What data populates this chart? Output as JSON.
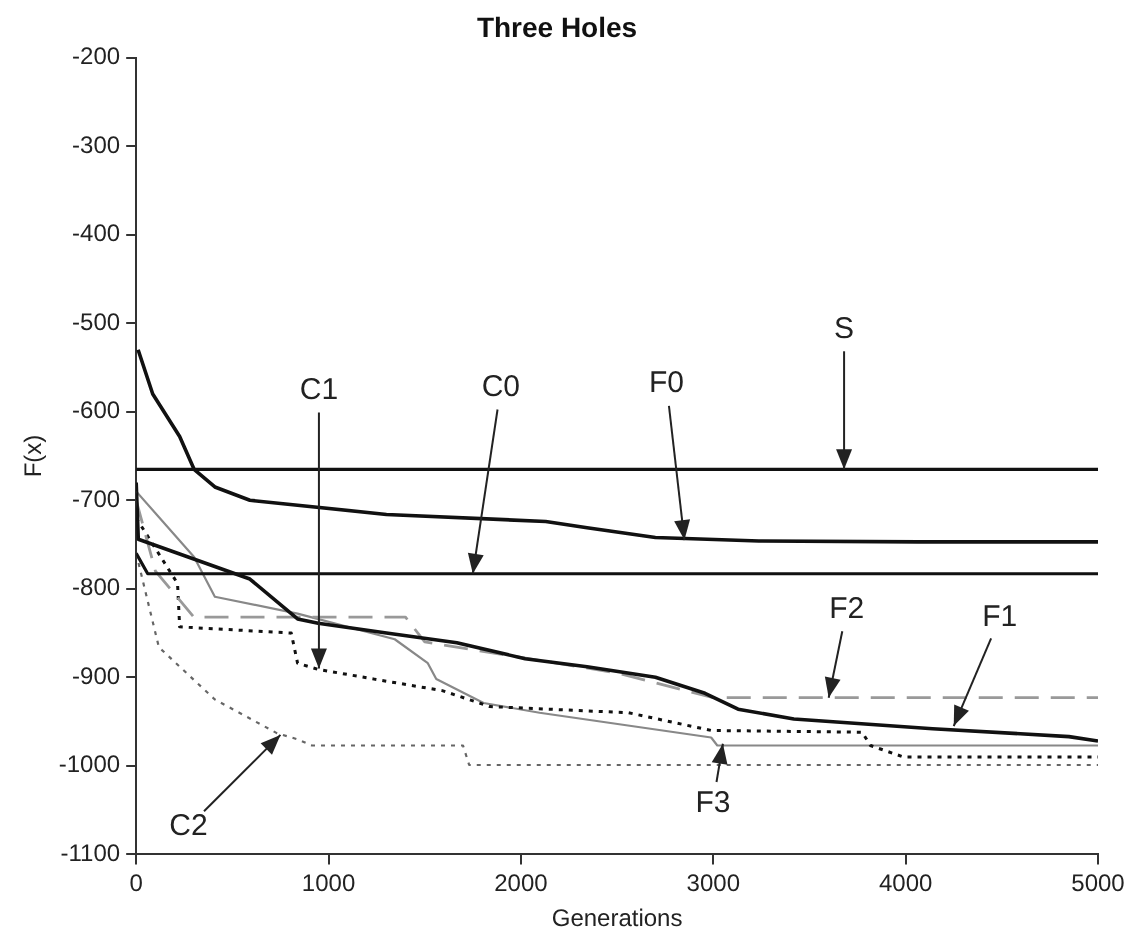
{
  "chart_data": {
    "type": "line",
    "title": "Three Holes",
    "xlabel": "Generations",
    "ylabel": "F(x)",
    "xlim": [
      0,
      5000
    ],
    "xticks": [
      0,
      1000,
      2000,
      3000,
      4000,
      5000
    ],
    "ylim": [
      -1100,
      -200
    ],
    "yticks": [
      -1100,
      -1000,
      -900,
      -800,
      -700,
      -600,
      -500,
      -400,
      -300,
      -200
    ],
    "grid": false,
    "legend": false,
    "marker": "none",
    "series": [
      {
        "color": "#111111",
        "line_style": "solid",
        "x": [
          0,
          5000
        ],
        "values": [
          -665,
          -665
        ]
      },
      {
        "color": "#111111",
        "line_style": "solid",
        "x": [
          0,
          60,
          5000
        ],
        "values": [
          -760,
          -783,
          -783
        ]
      },
      {
        "color": "#111111",
        "line_style": "solid",
        "x": [
          10,
          86,
          226,
          301,
          409,
          591,
          1301,
          2129,
          2344,
          2699,
          3237,
          4065,
          5000
        ],
        "values": [
          -530,
          -580,
          -628,
          -665,
          -685,
          -700,
          -716,
          -724,
          -731,
          -742,
          -746,
          -747,
          -747
        ]
      },
      {
        "color": "#111111",
        "line_style": "solid",
        "x": [
          0,
          11,
          591,
          839,
          946,
          1301,
          1667,
          2022,
          2344,
          2699,
          2957,
          3129,
          3419,
          4140,
          4849,
          5000
        ],
        "values": [
          -680,
          -744,
          -789,
          -834,
          -839,
          -850,
          -861,
          -879,
          -888,
          -900,
          -918,
          -936,
          -947,
          -958,
          -967,
          -972
        ]
      },
      {
        "color": "#999999",
        "line_style": "dashed",
        "x": [
          0,
          100,
          300,
          1400,
          1500,
          2500,
          3000,
          5000
        ],
        "values": [
          -700,
          -780,
          -832,
          -832,
          -860,
          -895,
          -923,
          -923
        ]
      },
      {
        "color": "#111111",
        "line_style": "dotted",
        "x": [
          0,
          215,
          226,
          806,
          839,
          946,
          1237,
          1591,
          1839,
          2559,
          2989,
          3774,
          3817,
          3989,
          5000
        ],
        "values": [
          -720,
          -794,
          -843,
          -850,
          -884,
          -891,
          -902,
          -915,
          -933,
          -940,
          -960,
          -962,
          -977,
          -990,
          -990
        ]
      },
      {
        "color": "#888888",
        "line_style": "solid",
        "x": [
          0,
          301,
          409,
          839,
          1344,
          1516,
          1560,
          1806,
          2097,
          2989,
          3021,
          5000
        ],
        "values": [
          -690,
          -764,
          -809,
          -828,
          -857,
          -884,
          -902,
          -929,
          -940,
          -968,
          -977,
          -977
        ]
      },
      {
        "color": "#666666",
        "line_style": "dotted",
        "x": [
          0,
          118,
          409,
          731,
          839,
          914,
          1699,
          1731,
          5000
        ],
        "values": [
          -760,
          -866,
          -925,
          -963,
          -970,
          -977,
          -977,
          -999,
          -999
        ]
      }
    ],
    "annotations": [
      {
        "text": "S",
        "x": 3680,
        "y": -665
      },
      {
        "text": "C0",
        "x": 1750,
        "y": -783
      },
      {
        "text": "F0",
        "x": 2850,
        "y": -745
      },
      {
        "text": "C1",
        "x": 950,
        "y": -890
      },
      {
        "text": "C2",
        "x": 750,
        "y": -965
      },
      {
        "text": "F1",
        "x": 4250,
        "y": -955
      },
      {
        "text": "F2",
        "x": 3600,
        "y": -923
      },
      {
        "text": "F3",
        "x": 3050,
        "y": -975
      }
    ]
  }
}
